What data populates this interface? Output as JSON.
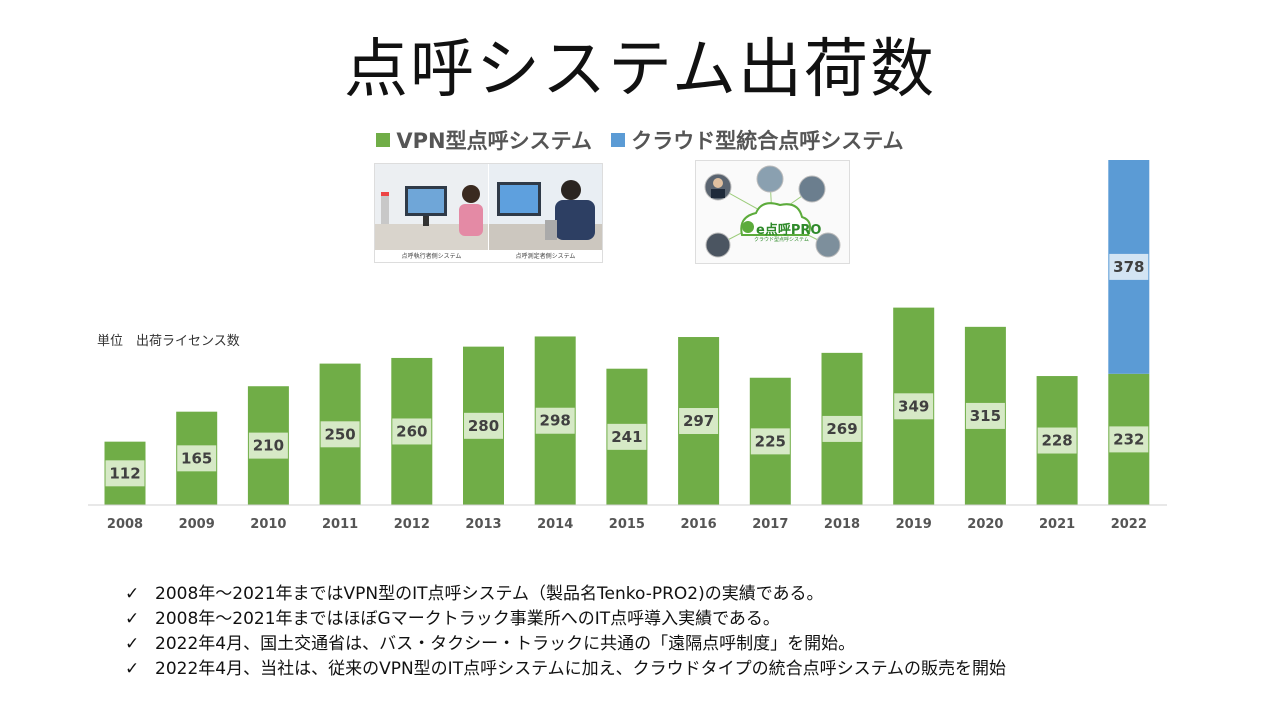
{
  "title": "点呼システム出荷数",
  "legend": [
    {
      "label": "VPN型点呼システム",
      "color": "#70AD47"
    },
    {
      "label": "クラウド型統合点呼システム",
      "color": "#5B9BD5"
    }
  ],
  "unit_note": "単位　出荷ライセンス数",
  "photos": {
    "vpn_caption_left": "点呼執行者側システム",
    "vpn_caption_right": "点呼測定者側システム",
    "cloud_logo_text": "e点呼PRO",
    "cloud_logo_subtext": "クラウド型点呼システム"
  },
  "chart_data": {
    "type": "bar",
    "stacked": true,
    "categories": [
      "2008",
      "2009",
      "2010",
      "2011",
      "2012",
      "2013",
      "2014",
      "2015",
      "2016",
      "2017",
      "2018",
      "2019",
      "2020",
      "2021",
      "2022"
    ],
    "series": [
      {
        "name": "VPN型点呼システム",
        "color": "#70AD47",
        "values": [
          112,
          165,
          210,
          250,
          260,
          280,
          298,
          241,
          297,
          225,
          269,
          349,
          315,
          228,
          232
        ]
      },
      {
        "name": "クラウド型統合点呼システム",
        "color": "#5B9BD5",
        "values": [
          0,
          0,
          0,
          0,
          0,
          0,
          0,
          0,
          0,
          0,
          0,
          0,
          0,
          0,
          378
        ]
      }
    ],
    "ylim": [
      0,
      610
    ],
    "grid": false,
    "legend_position": "top"
  },
  "notes": [
    "2008年～2021年まではVPN型のIT点呼システム（製品名Tenko-PRO2)の実績である。",
    "2008年～2021年まではほぼGマークトラック事業所へのIT点呼導入実績である。",
    "2022年4月、国土交通省は、バス・タクシー・トラックに共通の「遠隔点呼制度」を開始。",
    "2022年4月、当社は、従来のVPN型のIT点呼システムに加え、クラウドタイプの統合点呼システムの販売を開始"
  ],
  "check_icon": "✓"
}
